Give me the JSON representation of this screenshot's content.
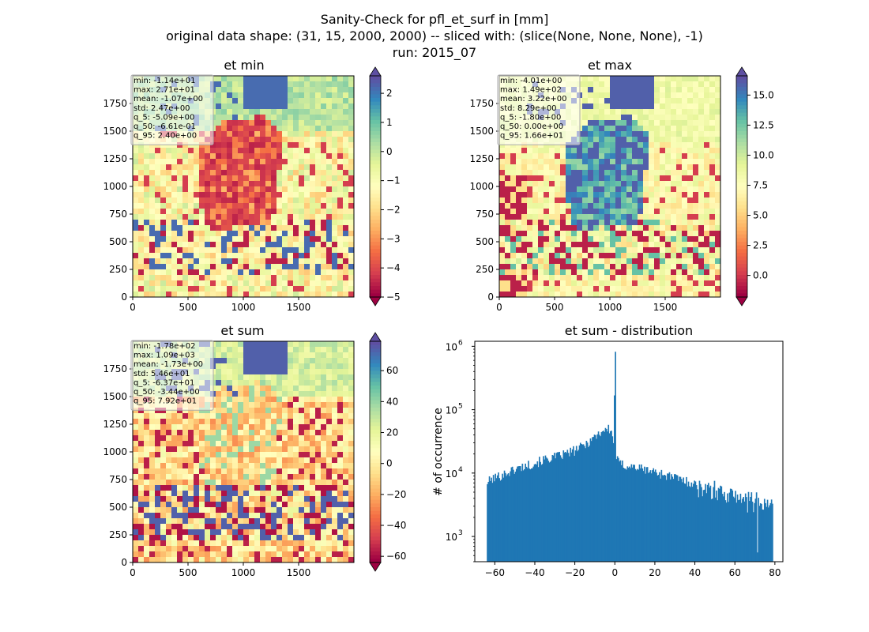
{
  "figure": {
    "title_lines": [
      "Sanity-Check for pfl_et_surf in [mm]",
      "original data shape: (31, 15, 2000, 2000) -- sliced with: (slice(None, None, None), -1)",
      "run: 2015_07"
    ]
  },
  "chart_data": [
    {
      "type": "heatmap",
      "title": "et min",
      "xlim": [
        0,
        2000
      ],
      "ylim": [
        0,
        2000
      ],
      "xticks": [
        "0",
        "500",
        "1000",
        "1500"
      ],
      "yticks": [
        "0",
        "250",
        "500",
        "750",
        "1000",
        "1250",
        "1500",
        "1750"
      ],
      "colormap": "Spectral",
      "color_range": [
        -5,
        2.6
      ],
      "colorbar_ticks": [
        "2",
        "1",
        "0",
        "−1",
        "−2",
        "−3",
        "−4",
        "−5"
      ],
      "colorbar_tick_values": [
        2,
        1,
        0,
        -1,
        -2,
        -3,
        -4,
        -5
      ],
      "stats": [
        "min: -1.14e+01",
        "max: 2.71e+01",
        "mean: -1.07e+00",
        "std: 2.47e+00",
        "q_5: -5.09e+00",
        "q_50: -6.61e-01",
        "q_95: 2.40e+00"
      ]
    },
    {
      "type": "heatmap",
      "title": "et max",
      "xlim": [
        0,
        2000
      ],
      "ylim": [
        0,
        2000
      ],
      "xticks": [
        "0",
        "500",
        "1000",
        "1500"
      ],
      "yticks": [
        "0",
        "250",
        "500",
        "750",
        "1000",
        "1250",
        "1500",
        "1750"
      ],
      "colormap": "Spectral",
      "color_range": [
        -1.8,
        16.6
      ],
      "colorbar_ticks": [
        "15.0",
        "12.5",
        "10.0",
        "7.5",
        "5.0",
        "2.5",
        "0.0"
      ],
      "colorbar_tick_values": [
        15,
        12.5,
        10,
        7.5,
        5,
        2.5,
        0
      ],
      "stats": [
        "min: -4.01e+00",
        "max: 1.49e+02",
        "mean: 3.22e+00",
        "std: 8.29e+00",
        "q_5: -1.80e+00",
        "q_50: 0.00e+00",
        "q_95: 1.66e+01"
      ]
    },
    {
      "type": "heatmap",
      "title": "et sum",
      "xlim": [
        0,
        2000
      ],
      "ylim": [
        0,
        2000
      ],
      "xticks": [
        "0",
        "500",
        "1000",
        "1500"
      ],
      "yticks": [
        "0",
        "250",
        "500",
        "750",
        "1000",
        "1250",
        "1500",
        "1750"
      ],
      "colormap": "Spectral",
      "color_range": [
        -64,
        79
      ],
      "colorbar_ticks": [
        "60",
        "40",
        "20",
        "0",
        "−20",
        "−40",
        "−60"
      ],
      "colorbar_tick_values": [
        60,
        40,
        20,
        0,
        -20,
        -40,
        -60
      ],
      "stats": [
        "min: -1.78e+02",
        "max: 1.09e+03",
        "mean: -1.73e+00",
        "std: 5.46e+01",
        "q_5: -6.37e+01",
        "q_50: -3.44e+00",
        "q_95: 7.92e+01"
      ]
    },
    {
      "type": "bar",
      "title": "et sum - distribution",
      "xlabel": "",
      "ylabel": "# of occurrence",
      "xlim": [
        -70,
        84
      ],
      "ylim_log": [
        400,
        1200000
      ],
      "xticks": [
        "−60",
        "−40",
        "−20",
        "0",
        "20",
        "40",
        "60",
        "80"
      ],
      "xtick_values": [
        -60,
        -40,
        -20,
        0,
        20,
        40,
        60,
        80
      ],
      "yticks": [
        "10",
        "10",
        "10",
        "10"
      ],
      "ytick_exponents": [
        "3",
        "4",
        "5",
        "6"
      ],
      "ytick_values": [
        1000,
        10000,
        100000,
        1000000
      ],
      "bar_color": "#1f77b4",
      "x_start": -64,
      "x_end": 79,
      "bin_width": 0.5,
      "control_points": [
        [
          -64,
          7200
        ],
        [
          -60,
          8500
        ],
        [
          -55,
          9800
        ],
        [
          -50,
          11500
        ],
        [
          -45,
          13000
        ],
        [
          -40,
          14500
        ],
        [
          -35,
          16500
        ],
        [
          -30,
          18000
        ],
        [
          -25,
          20000
        ],
        [
          -20,
          23000
        ],
        [
          -15,
          28000
        ],
        [
          -10,
          38000
        ],
        [
          -6,
          47000
        ],
        [
          -3,
          50000
        ],
        [
          -1.5,
          42000
        ],
        [
          -0.5,
          30000
        ],
        [
          0,
          820000
        ],
        [
          0.5,
          20000
        ],
        [
          1.5,
          15000
        ],
        [
          4,
          13500
        ],
        [
          10,
          12500
        ],
        [
          20,
          10500
        ],
        [
          30,
          8500
        ],
        [
          40,
          6800
        ],
        [
          50,
          5500
        ],
        [
          60,
          4400
        ],
        [
          70,
          3700
        ],
        [
          79,
          2900
        ]
      ]
    }
  ]
}
